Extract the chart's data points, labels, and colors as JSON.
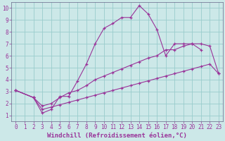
{
  "xlabel": "Windchill (Refroidissement éolien,°C)",
  "background_color": "#cce8e8",
  "grid_color": "#99cccc",
  "line_color": "#993399",
  "xlim": [
    -0.5,
    23.5
  ],
  "ylim": [
    0.5,
    10.5
  ],
  "xticks": [
    0,
    1,
    2,
    3,
    4,
    5,
    6,
    7,
    8,
    9,
    10,
    11,
    12,
    13,
    14,
    15,
    16,
    17,
    18,
    19,
    20,
    21,
    22,
    23
  ],
  "yticks": [
    1,
    2,
    3,
    4,
    5,
    6,
    7,
    8,
    9,
    10
  ],
  "line1_x": [
    0,
    2,
    3,
    4,
    5,
    6,
    7,
    8,
    9,
    10,
    11,
    12,
    13,
    14,
    15,
    16,
    17,
    18,
    19,
    20,
    21,
    22
  ],
  "line1_y": [
    3.1,
    2.5,
    1.2,
    1.5,
    2.6,
    2.6,
    3.9,
    5.3,
    7.0,
    8.3,
    8.7,
    9.2,
    9.2,
    10.2,
    9.5,
    8.2,
    6.0,
    7.0,
    7.0,
    7.0,
    6.5,
    null
  ],
  "line2_x": [
    0,
    2,
    3,
    4,
    5,
    6,
    7,
    8,
    9,
    10,
    11,
    12,
    13,
    14,
    15,
    16,
    17,
    18,
    19,
    20,
    21,
    22,
    23
  ],
  "line2_y": [
    3.1,
    2.5,
    1.8,
    2.0,
    2.5,
    2.9,
    3.1,
    3.5,
    4.0,
    4.3,
    4.6,
    4.9,
    5.2,
    5.5,
    5.8,
    6.0,
    6.5,
    6.5,
    6.8,
    7.0,
    7.0,
    6.8,
    4.5
  ],
  "line3_x": [
    0,
    2,
    3,
    4,
    5,
    6,
    7,
    8,
    9,
    10,
    11,
    12,
    13,
    14,
    15,
    16,
    17,
    18,
    19,
    20,
    21,
    22,
    23
  ],
  "line3_y": [
    3.1,
    2.5,
    1.5,
    1.7,
    1.9,
    2.1,
    2.3,
    2.5,
    2.7,
    2.9,
    3.1,
    3.3,
    3.5,
    3.7,
    3.9,
    4.1,
    4.3,
    4.5,
    4.7,
    4.9,
    5.1,
    5.3,
    4.5
  ],
  "tick_fontsize": 5.5,
  "label_fontsize": 6.5
}
